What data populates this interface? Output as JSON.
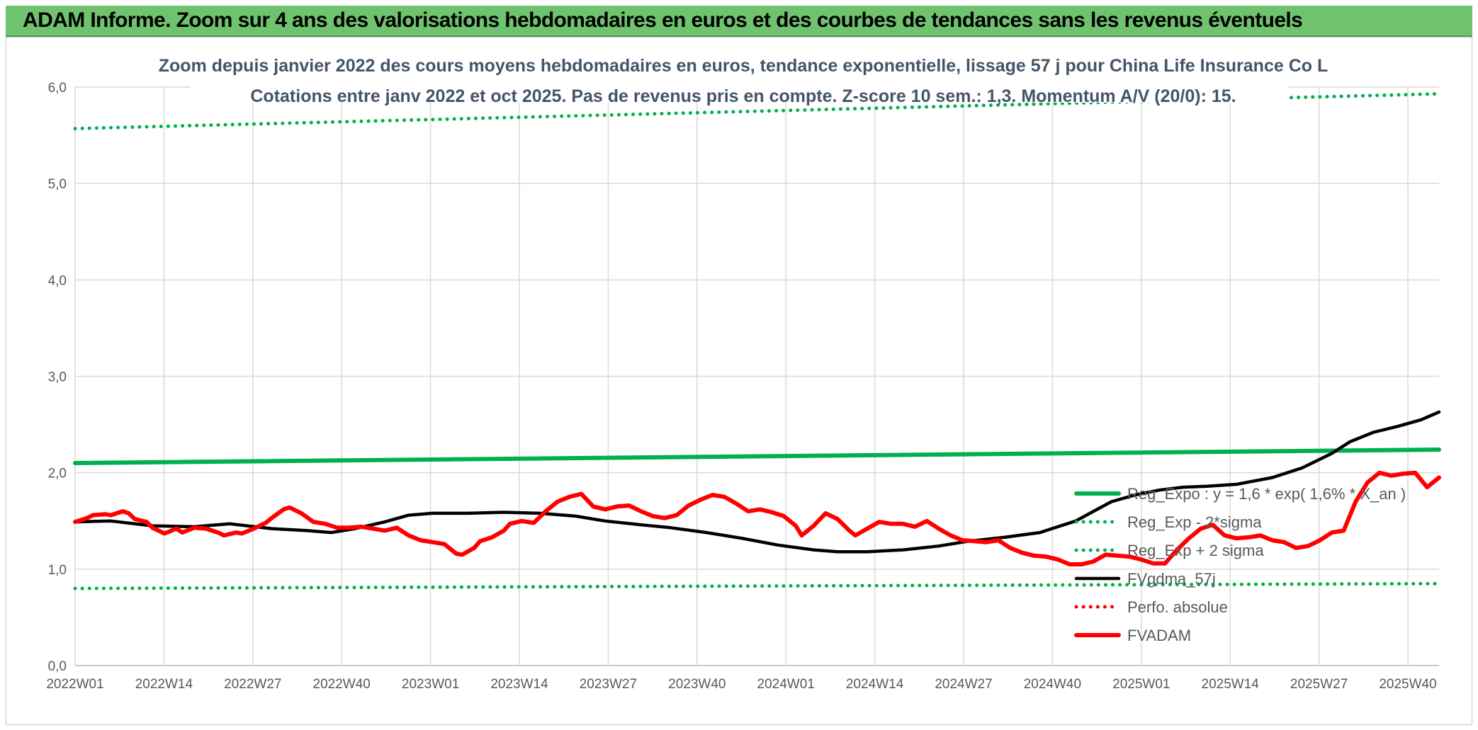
{
  "banner": {
    "title": "ADAM Informe. Zoom sur 4 ans des valorisations hebdomadaires en euros et des courbes de tendances sans les revenus éventuels"
  },
  "chart_data": {
    "type": "line",
    "title": "Zoom depuis janvier 2022 des cours moyens hebdomadaires en euros, tendance exponentielle, lissage 57 j pour China Life Insurance Co L",
    "subtitle": "Cotations entre janv 2022 et oct 2025. Pas de revenus pris en compte. Z-score 10 sem.: 1,3. Momentum A/V (20/0): 15.",
    "ylim": [
      0,
      6
    ],
    "y_ticks": [
      "0,0",
      "1,0",
      "2,0",
      "3,0",
      "4,0",
      "5,0",
      "6,0"
    ],
    "x_tick_labels": [
      "2022W01",
      "2022W14",
      "2022W27",
      "2022W40",
      "2023W01",
      "2023W14",
      "2023W27",
      "2023W40",
      "2024W01",
      "2024W14",
      "2024W27",
      "2024W40",
      "2025W01",
      "2025W14",
      "2025W27",
      "2025W40"
    ],
    "grid": true,
    "legend_position": "bottom-right",
    "series": [
      {
        "name": "Reg_Expo : y = 1,6 * exp( 1,6% *  X_an )",
        "color": "#00b050",
        "style": "solid-thick",
        "points": [
          [
            0,
            2.1
          ],
          [
            196,
            2.24
          ]
        ]
      },
      {
        "name": "Reg_Exp - 2*sigma",
        "color": "#00b050",
        "style": "dotted",
        "points": [
          [
            0,
            0.8
          ],
          [
            196,
            0.85
          ]
        ]
      },
      {
        "name": "Reg_Exp + 2 sigma",
        "color": "#00b050",
        "style": "dotted",
        "points": [
          [
            0,
            5.57
          ],
          [
            196,
            5.93
          ]
        ]
      },
      {
        "name": "FVgdma_57j",
        "color": "#000000",
        "style": "solid",
        "points": [
          [
            0,
            1.49
          ],
          [
            6,
            1.5
          ],
          [
            13,
            1.45
          ],
          [
            20,
            1.44
          ],
          [
            26,
            1.47
          ],
          [
            33,
            1.42
          ],
          [
            39,
            1.4
          ],
          [
            43,
            1.38
          ],
          [
            47,
            1.42
          ],
          [
            52,
            1.49
          ],
          [
            56,
            1.56
          ],
          [
            60,
            1.58
          ],
          [
            66,
            1.58
          ],
          [
            72,
            1.59
          ],
          [
            78,
            1.58
          ],
          [
            84,
            1.55
          ],
          [
            89,
            1.5
          ],
          [
            95,
            1.46
          ],
          [
            100,
            1.43
          ],
          [
            106,
            1.38
          ],
          [
            112,
            1.32
          ],
          [
            118,
            1.25
          ],
          [
            124,
            1.2
          ],
          [
            128,
            1.18
          ],
          [
            133,
            1.18
          ],
          [
            139,
            1.2
          ],
          [
            145,
            1.24
          ],
          [
            150,
            1.29
          ],
          [
            156,
            1.33
          ],
          [
            162,
            1.38
          ],
          [
            164,
            1.42
          ],
          [
            168,
            1.5
          ],
          [
            171,
            1.6
          ],
          [
            174,
            1.7
          ],
          [
            178,
            1.77
          ],
          [
            182,
            1.82
          ],
          [
            186,
            1.85
          ],
          [
            190,
            1.86
          ],
          [
            195,
            1.88
          ],
          [
            201,
            1.95
          ],
          [
            206,
            2.05
          ],
          [
            211,
            2.2
          ],
          [
            214,
            2.32
          ],
          [
            218,
            2.42
          ],
          [
            222,
            2.48
          ],
          [
            226,
            2.55
          ],
          [
            229,
            2.63
          ]
        ]
      },
      {
        "name": "Perfo. absolue",
        "color": "#ff0000",
        "style": "dotted",
        "points": []
      },
      {
        "name": "FVADAM",
        "color": "#ff0000",
        "style": "solid-thick",
        "points": [
          [
            0,
            1.49
          ],
          [
            2,
            1.53
          ],
          [
            3,
            1.56
          ],
          [
            5,
            1.57
          ],
          [
            6,
            1.56
          ],
          [
            8,
            1.6
          ],
          [
            9,
            1.58
          ],
          [
            10,
            1.52
          ],
          [
            12,
            1.49
          ],
          [
            13,
            1.43
          ],
          [
            15,
            1.37
          ],
          [
            17,
            1.42
          ],
          [
            18,
            1.38
          ],
          [
            20,
            1.43
          ],
          [
            22,
            1.42
          ],
          [
            24,
            1.38
          ],
          [
            25,
            1.35
          ],
          [
            27,
            1.38
          ],
          [
            28,
            1.37
          ],
          [
            30,
            1.42
          ],
          [
            32,
            1.48
          ],
          [
            33,
            1.53
          ],
          [
            35,
            1.62
          ],
          [
            36,
            1.64
          ],
          [
            38,
            1.58
          ],
          [
            40,
            1.49
          ],
          [
            42,
            1.47
          ],
          [
            44,
            1.43
          ],
          [
            46,
            1.43
          ],
          [
            48,
            1.44
          ],
          [
            50,
            1.42
          ],
          [
            52,
            1.4
          ],
          [
            54,
            1.43
          ],
          [
            56,
            1.35
          ],
          [
            58,
            1.3
          ],
          [
            60,
            1.28
          ],
          [
            62,
            1.26
          ],
          [
            64,
            1.16
          ],
          [
            65,
            1.15
          ],
          [
            67,
            1.22
          ],
          [
            68,
            1.29
          ],
          [
            70,
            1.33
          ],
          [
            72,
            1.4
          ],
          [
            73,
            1.47
          ],
          [
            75,
            1.5
          ],
          [
            77,
            1.48
          ],
          [
            79,
            1.6
          ],
          [
            81,
            1.7
          ],
          [
            83,
            1.75
          ],
          [
            85,
            1.78
          ],
          [
            87,
            1.65
          ],
          [
            89,
            1.62
          ],
          [
            91,
            1.65
          ],
          [
            93,
            1.66
          ],
          [
            95,
            1.6
          ],
          [
            97,
            1.55
          ],
          [
            99,
            1.53
          ],
          [
            101,
            1.56
          ],
          [
            103,
            1.66
          ],
          [
            105,
            1.72
          ],
          [
            107,
            1.77
          ],
          [
            109,
            1.75
          ],
          [
            111,
            1.68
          ],
          [
            113,
            1.6
          ],
          [
            115,
            1.62
          ],
          [
            117,
            1.59
          ],
          [
            119,
            1.55
          ],
          [
            121,
            1.45
          ],
          [
            122,
            1.35
          ],
          [
            124,
            1.45
          ],
          [
            126,
            1.58
          ],
          [
            128,
            1.52
          ],
          [
            130,
            1.4
          ],
          [
            131,
            1.35
          ],
          [
            133,
            1.42
          ],
          [
            135,
            1.49
          ],
          [
            137,
            1.47
          ],
          [
            139,
            1.47
          ],
          [
            141,
            1.44
          ],
          [
            143,
            1.5
          ],
          [
            145,
            1.42
          ],
          [
            147,
            1.35
          ],
          [
            149,
            1.3
          ],
          [
            151,
            1.29
          ],
          [
            153,
            1.28
          ],
          [
            155,
            1.3
          ],
          [
            157,
            1.22
          ],
          [
            159,
            1.17
          ],
          [
            161,
            1.14
          ],
          [
            163,
            1.13
          ],
          [
            165,
            1.1
          ],
          [
            167,
            1.05
          ],
          [
            169,
            1.05
          ],
          [
            171,
            1.08
          ],
          [
            173,
            1.15
          ],
          [
            175,
            1.14
          ],
          [
            177,
            1.13
          ],
          [
            179,
            1.1
          ],
          [
            181,
            1.06
          ],
          [
            183,
            1.06
          ],
          [
            185,
            1.2
          ],
          [
            187,
            1.32
          ],
          [
            189,
            1.42
          ],
          [
            191,
            1.46
          ],
          [
            193,
            1.35
          ],
          [
            195,
            1.32
          ],
          [
            197,
            1.33
          ],
          [
            199,
            1.35
          ],
          [
            201,
            1.3
          ],
          [
            203,
            1.28
          ],
          [
            205,
            1.22
          ],
          [
            207,
            1.24
          ],
          [
            209,
            1.3
          ],
          [
            211,
            1.38
          ],
          [
            213,
            1.4
          ],
          [
            215,
            1.7
          ],
          [
            217,
            1.9
          ],
          [
            219,
            2.0
          ],
          [
            221,
            1.97
          ],
          [
            223,
            1.99
          ],
          [
            225,
            2.0
          ],
          [
            227,
            1.85
          ],
          [
            229,
            1.95
          ]
        ]
      }
    ]
  }
}
